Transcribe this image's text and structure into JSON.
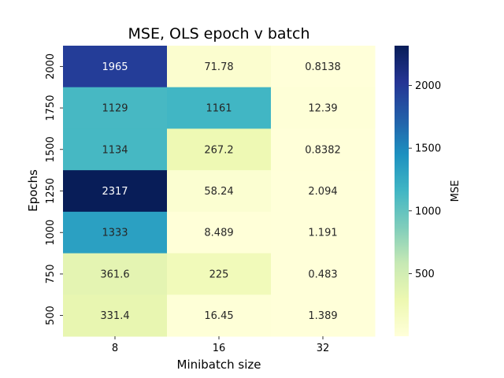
{
  "chart_data": {
    "type": "heatmap",
    "title": "MSE, OLS epoch v batch",
    "xlabel": "Minibatch size",
    "ylabel": "Epochs",
    "x_categories": [
      "8",
      "16",
      "32"
    ],
    "y_categories": [
      "2000",
      "1750",
      "1500",
      "1250",
      "1000",
      "750",
      "500"
    ],
    "values": [
      [
        1965,
        71.78,
        0.8138
      ],
      [
        1129,
        1161,
        12.39
      ],
      [
        1134,
        267.2,
        0.8382
      ],
      [
        2317,
        58.24,
        2.094
      ],
      [
        1333,
        8.489,
        1.191
      ],
      [
        361.6,
        225,
        0.483
      ],
      [
        331.4,
        16.45,
        1.389
      ]
    ],
    "value_labels": [
      [
        "1965",
        "71.78",
        "0.8138"
      ],
      [
        "1129",
        "1161",
        "12.39"
      ],
      [
        "1134",
        "267.2",
        "0.8382"
      ],
      [
        "2317",
        "58.24",
        "2.094"
      ],
      [
        "1333",
        "8.489",
        "1.191"
      ],
      [
        "361.6",
        "225",
        "0.483"
      ],
      [
        "331.4",
        "16.45",
        "1.389"
      ]
    ],
    "colorbar": {
      "label": "MSE",
      "colormap": "YlGnBu",
      "vmin": 0.483,
      "vmax": 2317,
      "ticks": [
        500,
        1000,
        1500,
        2000
      ]
    }
  }
}
